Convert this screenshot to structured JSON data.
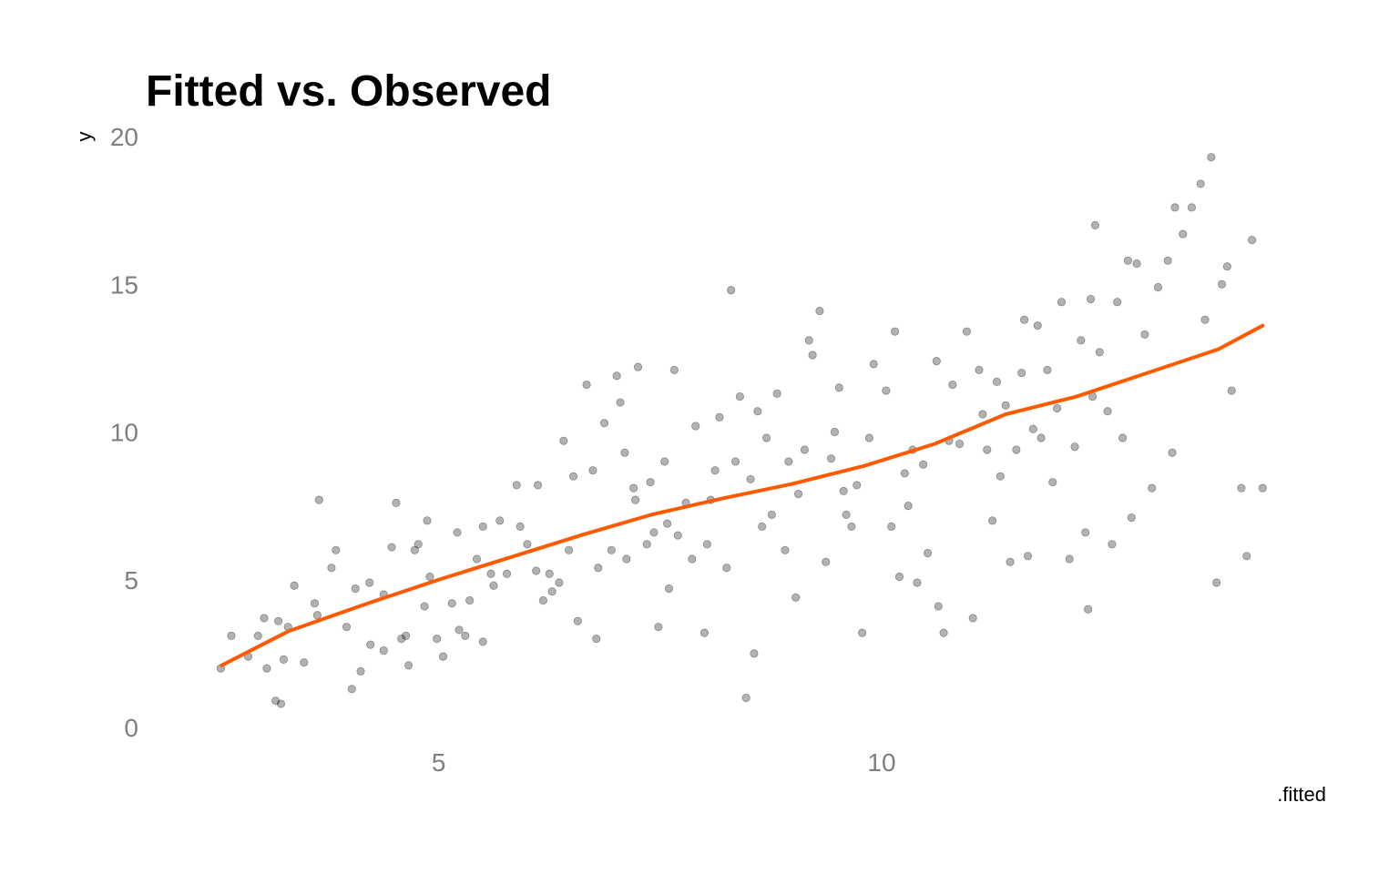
{
  "chart_data": {
    "type": "scatter",
    "title": "Fitted vs. Observed",
    "xlabel": ".fitted",
    "ylabel": "y",
    "xlim": [
      2.3,
      14.4
    ],
    "ylim": [
      0,
      20
    ],
    "xticks": [
      5,
      10
    ],
    "xtick_labels": [
      "5",
      "10"
    ],
    "yticks": [
      0,
      5,
      10,
      15,
      20
    ],
    "ytick_labels": [
      "0",
      "5",
      "10",
      "15",
      "20"
    ],
    "grid": false,
    "legend": "none",
    "colors": {
      "points": "#000000",
      "smooth": "#ff5a00"
    },
    "series": [
      {
        "type": "scatter",
        "points": [
          [
            2.54,
            2.0
          ],
          [
            2.66,
            3.1
          ],
          [
            2.85,
            2.4
          ],
          [
            2.96,
            3.1
          ],
          [
            3.06,
            2.0
          ],
          [
            3.03,
            3.7
          ],
          [
            3.16,
            0.9
          ],
          [
            3.22,
            0.8
          ],
          [
            3.19,
            3.6
          ],
          [
            3.25,
            2.3
          ],
          [
            3.3,
            3.4
          ],
          [
            3.37,
            4.8
          ],
          [
            3.48,
            2.2
          ],
          [
            3.6,
            4.2
          ],
          [
            3.63,
            3.8
          ],
          [
            3.65,
            7.7
          ],
          [
            3.79,
            5.4
          ],
          [
            3.84,
            6.0
          ],
          [
            3.96,
            3.4
          ],
          [
            4.02,
            1.3
          ],
          [
            4.06,
            4.7
          ],
          [
            4.12,
            1.9
          ],
          [
            4.22,
            4.9
          ],
          [
            4.23,
            2.8
          ],
          [
            4.38,
            2.6
          ],
          [
            4.38,
            4.5
          ],
          [
            4.47,
            6.1
          ],
          [
            4.52,
            7.6
          ],
          [
            4.58,
            3.0
          ],
          [
            4.63,
            3.1
          ],
          [
            4.66,
            2.1
          ],
          [
            4.73,
            6.0
          ],
          [
            4.77,
            6.2
          ],
          [
            4.84,
            4.1
          ],
          [
            4.87,
            7.0
          ],
          [
            4.9,
            5.1
          ],
          [
            4.98,
            3.0
          ],
          [
            5.05,
            2.4
          ],
          [
            5.15,
            4.2
          ],
          [
            5.21,
            6.6
          ],
          [
            5.23,
            3.3
          ],
          [
            5.3,
            3.1
          ],
          [
            5.35,
            4.3
          ],
          [
            5.43,
            5.7
          ],
          [
            5.5,
            2.9
          ],
          [
            5.5,
            6.8
          ],
          [
            5.59,
            5.2
          ],
          [
            5.62,
            4.8
          ],
          [
            5.69,
            7.0
          ],
          [
            5.77,
            5.2
          ],
          [
            5.88,
            8.2
          ],
          [
            5.92,
            6.8
          ],
          [
            6.0,
            6.2
          ],
          [
            6.1,
            5.3
          ],
          [
            6.12,
            8.2
          ],
          [
            6.18,
            4.3
          ],
          [
            6.25,
            5.2
          ],
          [
            6.28,
            4.6
          ],
          [
            6.36,
            4.9
          ],
          [
            6.41,
            9.7
          ],
          [
            6.47,
            6.0
          ],
          [
            6.52,
            8.5
          ],
          [
            6.57,
            3.6
          ],
          [
            6.67,
            11.6
          ],
          [
            6.74,
            8.7
          ],
          [
            6.78,
            3.0
          ],
          [
            6.8,
            5.4
          ],
          [
            6.87,
            10.3
          ],
          [
            6.95,
            6.0
          ],
          [
            7.01,
            11.9
          ],
          [
            7.05,
            11.0
          ],
          [
            7.1,
            9.3
          ],
          [
            7.12,
            5.7
          ],
          [
            7.2,
            8.1
          ],
          [
            7.22,
            7.7
          ],
          [
            7.25,
            12.2
          ],
          [
            7.35,
            6.2
          ],
          [
            7.39,
            8.3
          ],
          [
            7.43,
            6.6
          ],
          [
            7.48,
            3.4
          ],
          [
            7.55,
            9.0
          ],
          [
            7.58,
            6.9
          ],
          [
            7.6,
            4.7
          ],
          [
            7.66,
            12.1
          ],
          [
            7.7,
            6.5
          ],
          [
            7.79,
            7.6
          ],
          [
            7.86,
            5.7
          ],
          [
            7.9,
            10.2
          ],
          [
            8.0,
            3.2
          ],
          [
            8.03,
            6.2
          ],
          [
            8.07,
            7.7
          ],
          [
            8.12,
            8.7
          ],
          [
            8.17,
            10.5
          ],
          [
            8.25,
            5.4
          ],
          [
            8.3,
            14.8
          ],
          [
            8.35,
            9.0
          ],
          [
            8.4,
            11.2
          ],
          [
            8.47,
            1.0
          ],
          [
            8.52,
            8.4
          ],
          [
            8.56,
            2.5
          ],
          [
            8.6,
            10.7
          ],
          [
            8.65,
            6.8
          ],
          [
            8.7,
            9.8
          ],
          [
            8.76,
            7.2
          ],
          [
            8.82,
            11.3
          ],
          [
            8.91,
            6.0
          ],
          [
            8.95,
            9.0
          ],
          [
            9.03,
            4.4
          ],
          [
            9.06,
            7.9
          ],
          [
            9.13,
            9.4
          ],
          [
            9.18,
            13.1
          ],
          [
            9.22,
            12.6
          ],
          [
            9.3,
            14.1
          ],
          [
            9.37,
            5.6
          ],
          [
            9.43,
            9.1
          ],
          [
            9.47,
            10.0
          ],
          [
            9.52,
            11.5
          ],
          [
            9.57,
            8.0
          ],
          [
            9.6,
            7.2
          ],
          [
            9.66,
            6.8
          ],
          [
            9.72,
            8.2
          ],
          [
            9.78,
            3.2
          ],
          [
            9.86,
            9.8
          ],
          [
            9.91,
            12.3
          ],
          [
            10.05,
            11.4
          ],
          [
            10.11,
            6.8
          ],
          [
            10.15,
            13.4
          ],
          [
            10.2,
            5.1
          ],
          [
            10.26,
            8.6
          ],
          [
            10.3,
            7.5
          ],
          [
            10.35,
            9.4
          ],
          [
            10.4,
            4.9
          ],
          [
            10.47,
            8.9
          ],
          [
            10.52,
            5.9
          ],
          [
            10.62,
            12.4
          ],
          [
            10.64,
            4.1
          ],
          [
            10.7,
            3.2
          ],
          [
            10.76,
            9.7
          ],
          [
            10.8,
            11.6
          ],
          [
            10.88,
            9.6
          ],
          [
            10.96,
            13.4
          ],
          [
            11.03,
            3.7
          ],
          [
            11.1,
            12.1
          ],
          [
            11.14,
            10.6
          ],
          [
            11.19,
            9.4
          ],
          [
            11.25,
            7.0
          ],
          [
            11.3,
            11.7
          ],
          [
            11.34,
            8.5
          ],
          [
            11.4,
            10.9
          ],
          [
            11.45,
            5.6
          ],
          [
            11.52,
            9.4
          ],
          [
            11.58,
            12.0
          ],
          [
            11.61,
            13.8
          ],
          [
            11.65,
            5.8
          ],
          [
            11.71,
            10.1
          ],
          [
            11.76,
            13.6
          ],
          [
            11.8,
            9.8
          ],
          [
            11.87,
            12.1
          ],
          [
            11.93,
            8.3
          ],
          [
            11.98,
            10.8
          ],
          [
            12.03,
            14.4
          ],
          [
            12.12,
            5.7
          ],
          [
            12.18,
            9.5
          ],
          [
            12.25,
            13.1
          ],
          [
            12.3,
            6.6
          ],
          [
            12.33,
            4.0
          ],
          [
            12.36,
            14.5
          ],
          [
            12.38,
            11.2
          ],
          [
            12.41,
            17.0
          ],
          [
            12.46,
            12.7
          ],
          [
            12.55,
            10.7
          ],
          [
            12.6,
            6.2
          ],
          [
            12.66,
            14.4
          ],
          [
            12.72,
            9.8
          ],
          [
            12.78,
            15.8
          ],
          [
            12.82,
            7.1
          ],
          [
            12.88,
            15.7
          ],
          [
            12.97,
            13.3
          ],
          [
            13.05,
            8.1
          ],
          [
            13.12,
            14.9
          ],
          [
            13.23,
            15.8
          ],
          [
            13.28,
            9.3
          ],
          [
            13.31,
            17.6
          ],
          [
            13.4,
            16.7
          ],
          [
            13.5,
            17.6
          ],
          [
            13.6,
            18.4
          ],
          [
            13.65,
            13.8
          ],
          [
            13.72,
            19.3
          ],
          [
            13.78,
            4.9
          ],
          [
            13.84,
            15.0
          ],
          [
            13.9,
            15.6
          ],
          [
            13.95,
            11.4
          ],
          [
            14.06,
            8.1
          ],
          [
            14.12,
            5.8
          ],
          [
            14.18,
            16.5
          ],
          [
            14.3,
            8.1
          ]
        ]
      },
      {
        "type": "line",
        "points": [
          [
            2.55,
            2.1
          ],
          [
            3.3,
            3.25
          ],
          [
            4.2,
            4.2
          ],
          [
            5.0,
            5.0
          ],
          [
            5.8,
            5.75
          ],
          [
            6.6,
            6.5
          ],
          [
            7.4,
            7.2
          ],
          [
            8.2,
            7.75
          ],
          [
            9.0,
            8.25
          ],
          [
            9.8,
            8.85
          ],
          [
            10.6,
            9.6
          ],
          [
            11.4,
            10.6
          ],
          [
            12.2,
            11.2
          ],
          [
            13.0,
            12.0
          ],
          [
            13.8,
            12.8
          ],
          [
            14.3,
            13.6
          ]
        ]
      }
    ]
  }
}
